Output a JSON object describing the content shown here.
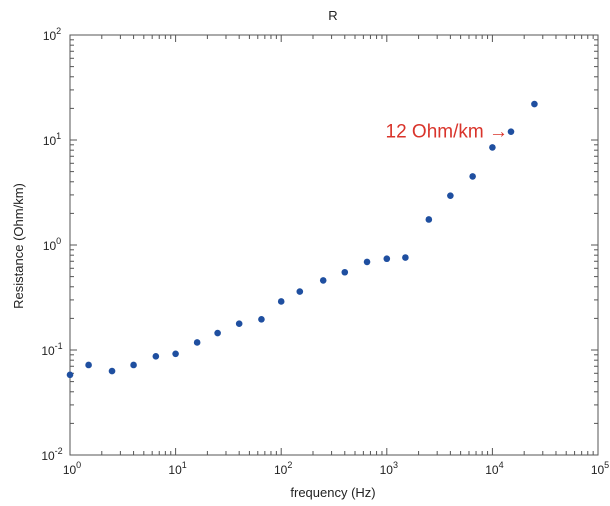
{
  "chart_data": {
    "type": "scatter",
    "title": "R",
    "xlabel": "frequency (Hz)",
    "ylabel": "Resistance (Ohm/km)",
    "xscale": "log",
    "yscale": "log",
    "xlim": [
      1,
      100000
    ],
    "ylim": [
      0.01,
      100
    ],
    "x_ticks": [
      {
        "value": 1,
        "base": "10",
        "exp": "0"
      },
      {
        "value": 10,
        "base": "10",
        "exp": "1"
      },
      {
        "value": 100,
        "base": "10",
        "exp": "2"
      },
      {
        "value": 1000,
        "base": "10",
        "exp": "3"
      },
      {
        "value": 10000,
        "base": "10",
        "exp": "4"
      },
      {
        "value": 100000,
        "base": "10",
        "exp": "5"
      }
    ],
    "y_ticks": [
      {
        "value": 0.01,
        "base": "10",
        "exp": "-2"
      },
      {
        "value": 0.1,
        "base": "10",
        "exp": "-1"
      },
      {
        "value": 1,
        "base": "10",
        "exp": "0"
      },
      {
        "value": 10,
        "base": "10",
        "exp": "1"
      },
      {
        "value": 100,
        "base": "10",
        "exp": "2"
      }
    ],
    "grid": false,
    "marker_color": "#1f4fa0",
    "points": [
      {
        "x": 1,
        "y": 0.058
      },
      {
        "x": 1.5,
        "y": 0.072
      },
      {
        "x": 2.5,
        "y": 0.063
      },
      {
        "x": 4,
        "y": 0.072
      },
      {
        "x": 6.5,
        "y": 0.087
      },
      {
        "x": 10,
        "y": 0.092
      },
      {
        "x": 16,
        "y": 0.118
      },
      {
        "x": 25,
        "y": 0.145
      },
      {
        "x": 40,
        "y": 0.178
      },
      {
        "x": 65,
        "y": 0.196
      },
      {
        "x": 100,
        "y": 0.29
      },
      {
        "x": 150,
        "y": 0.36
      },
      {
        "x": 250,
        "y": 0.46
      },
      {
        "x": 400,
        "y": 0.55
      },
      {
        "x": 650,
        "y": 0.69
      },
      {
        "x": 1000,
        "y": 0.74
      },
      {
        "x": 1500,
        "y": 0.76
      },
      {
        "x": 2500,
        "y": 1.75
      },
      {
        "x": 4000,
        "y": 2.95
      },
      {
        "x": 6500,
        "y": 4.5
      },
      {
        "x": 10000,
        "y": 8.5
      },
      {
        "x": 15000,
        "y": 12
      },
      {
        "x": 25000,
        "y": 22
      }
    ],
    "annotations": [
      {
        "text": "12 Ohm/km →",
        "x": 15000,
        "y": 12,
        "color": "#d9342b"
      }
    ]
  }
}
